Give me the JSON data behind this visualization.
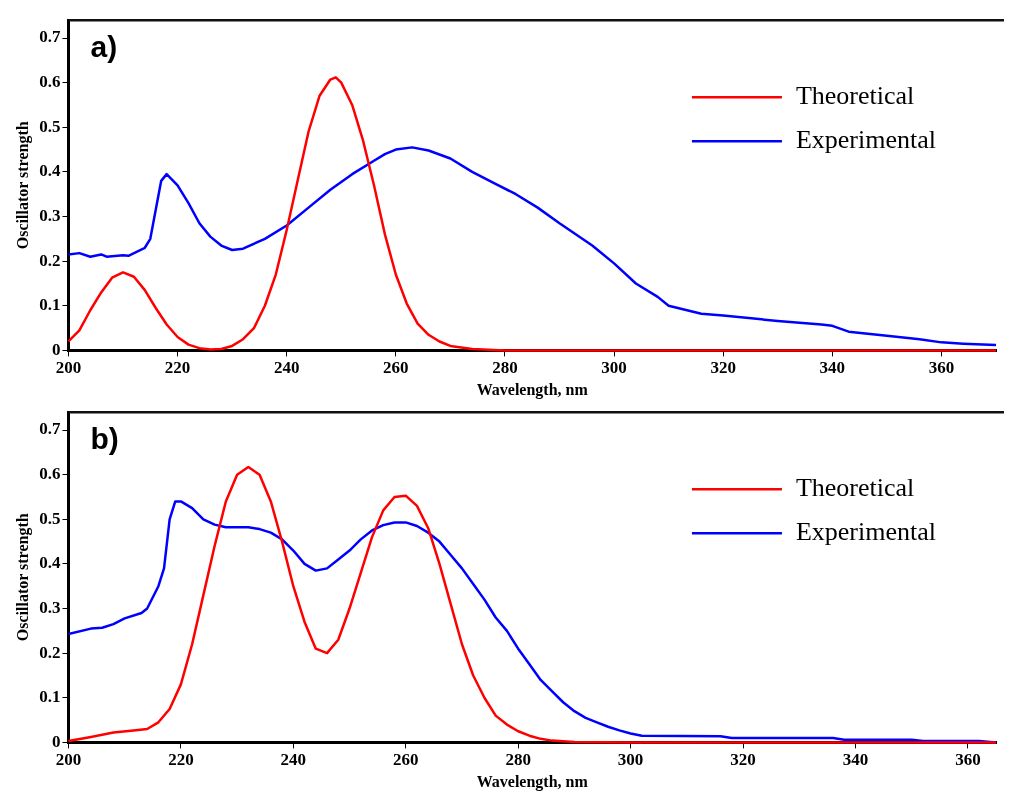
{
  "chart_data": [
    {
      "type": "line",
      "title": "a)",
      "xlabel": "Wavelength, nm",
      "ylabel": "Oscillator strength",
      "xlim": [
        200,
        370
      ],
      "ylim": [
        0,
        0.74
      ],
      "xticks": [
        200,
        220,
        240,
        260,
        280,
        300,
        320,
        340,
        360
      ],
      "yticks": [
        0,
        0.1,
        0.2,
        0.3,
        0.4,
        0.5,
        0.6,
        0.7
      ],
      "grid": false,
      "legend": "top right",
      "series": [
        {
          "name": "Theoretical",
          "color": "#ff0000",
          "x": [
            200,
            202,
            204,
            206,
            208,
            210,
            212,
            214,
            216,
            218,
            220,
            222,
            224,
            226,
            228,
            230,
            232,
            234,
            236,
            238,
            240,
            242,
            244,
            246,
            248,
            249,
            250,
            252,
            254,
            256,
            258,
            260,
            262,
            264,
            266,
            268,
            270,
            274,
            278,
            280,
            370
          ],
          "values": [
            0.02,
            0.045,
            0.09,
            0.13,
            0.163,
            0.175,
            0.165,
            0.135,
            0.095,
            0.058,
            0.03,
            0.013,
            0.005,
            0.002,
            0.003,
            0.01,
            0.025,
            0.05,
            0.1,
            0.17,
            0.27,
            0.38,
            0.49,
            0.57,
            0.607,
            0.612,
            0.6,
            0.55,
            0.47,
            0.37,
            0.26,
            0.17,
            0.105,
            0.06,
            0.035,
            0.02,
            0.01,
            0.003,
            0.001,
            0,
            0
          ]
        },
        {
          "name": "Experimental",
          "color": "#0000ff",
          "x": [
            200,
            202,
            204,
            206,
            207,
            210,
            211,
            214,
            215,
            217,
            218,
            220,
            222,
            224,
            226,
            228,
            230,
            232,
            236,
            240,
            244,
            248,
            252,
            256,
            258,
            260,
            263,
            266,
            270,
            274,
            278,
            282,
            286,
            290,
            296,
            300,
            304,
            308,
            310,
            316,
            320,
            330,
            338,
            340,
            343,
            350,
            356,
            360,
            364,
            370
          ],
          "values": [
            0.215,
            0.218,
            0.21,
            0.215,
            0.21,
            0.213,
            0.212,
            0.23,
            0.25,
            0.38,
            0.395,
            0.37,
            0.33,
            0.285,
            0.255,
            0.235,
            0.225,
            0.228,
            0.25,
            0.28,
            0.32,
            0.36,
            0.395,
            0.425,
            0.44,
            0.45,
            0.455,
            0.448,
            0.43,
            0.4,
            0.375,
            0.35,
            0.32,
            0.285,
            0.235,
            0.195,
            0.15,
            0.12,
            0.1,
            0.082,
            0.078,
            0.066,
            0.058,
            0.055,
            0.042,
            0.033,
            0.025,
            0.018,
            0.015,
            0.012
          ]
        }
      ]
    },
    {
      "type": "line",
      "title": "b)",
      "xlabel": "Wavelength, nm",
      "ylabel": "Oscillator strength",
      "xlim": [
        200,
        365
      ],
      "ylim": [
        0,
        0.74
      ],
      "xticks": [
        200,
        220,
        240,
        260,
        280,
        300,
        320,
        340,
        360
      ],
      "yticks": [
        0,
        0.1,
        0.2,
        0.3,
        0.4,
        0.5,
        0.6,
        0.7
      ],
      "grid": false,
      "legend": "top right",
      "series": [
        {
          "name": "Theoretical",
          "color": "#ff0000",
          "x": [
            200,
            204,
            208,
            212,
            214,
            216,
            218,
            220,
            222,
            224,
            226,
            228,
            230,
            232,
            234,
            236,
            238,
            240,
            242,
            244,
            246,
            248,
            250,
            252,
            254,
            256,
            258,
            260,
            262,
            264,
            266,
            268,
            270,
            272,
            274,
            276,
            278,
            280,
            282,
            284,
            286,
            290,
            300,
            365
          ],
          "values": [
            0.003,
            0.012,
            0.022,
            0.027,
            0.03,
            0.045,
            0.075,
            0.13,
            0.22,
            0.33,
            0.44,
            0.54,
            0.6,
            0.617,
            0.6,
            0.54,
            0.45,
            0.35,
            0.27,
            0.21,
            0.2,
            0.23,
            0.3,
            0.38,
            0.46,
            0.52,
            0.55,
            0.553,
            0.53,
            0.48,
            0.4,
            0.31,
            0.22,
            0.15,
            0.1,
            0.06,
            0.04,
            0.025,
            0.015,
            0.008,
            0.004,
            0.001,
            0,
            0
          ]
        },
        {
          "name": "Experimental",
          "color": "#0000ff",
          "x": [
            200,
            204,
            206,
            208,
            210,
            213,
            214,
            216,
            217,
            218,
            219,
            220,
            222,
            224,
            226,
            228,
            232,
            234,
            236,
            238,
            240,
            242,
            244,
            246,
            248,
            250,
            252,
            254,
            256,
            258,
            260,
            262,
            264,
            266,
            268,
            270,
            272,
            274,
            276,
            278,
            280,
            282,
            284,
            286,
            288,
            290,
            292,
            294,
            296,
            298,
            300,
            302,
            316,
            318,
            336,
            338,
            350,
            352,
            362,
            365
          ],
          "values": [
            0.243,
            0.255,
            0.257,
            0.265,
            0.278,
            0.29,
            0.3,
            0.35,
            0.39,
            0.5,
            0.54,
            0.54,
            0.525,
            0.5,
            0.488,
            0.482,
            0.482,
            0.478,
            0.47,
            0.455,
            0.43,
            0.4,
            0.385,
            0.39,
            0.41,
            0.43,
            0.455,
            0.475,
            0.487,
            0.493,
            0.493,
            0.485,
            0.47,
            0.45,
            0.42,
            0.39,
            0.355,
            0.32,
            0.28,
            0.25,
            0.21,
            0.175,
            0.14,
            0.115,
            0.09,
            0.07,
            0.055,
            0.045,
            0.035,
            0.027,
            0.02,
            0.015,
            0.014,
            0.01,
            0.01,
            0.006,
            0.006,
            0.003,
            0.003,
            0
          ]
        }
      ]
    }
  ]
}
